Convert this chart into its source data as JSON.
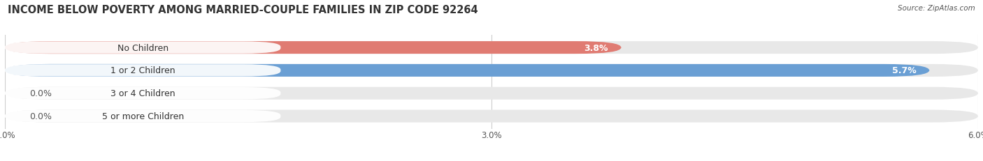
{
  "title": "INCOME BELOW POVERTY AMONG MARRIED-COUPLE FAMILIES IN ZIP CODE 92264",
  "source": "Source: ZipAtlas.com",
  "categories": [
    "No Children",
    "1 or 2 Children",
    "3 or 4 Children",
    "5 or more Children"
  ],
  "values": [
    3.8,
    5.7,
    0.0,
    0.0
  ],
  "bar_colors": [
    "#E07B72",
    "#6A9FD4",
    "#C9A0DC",
    "#70C8C8"
  ],
  "xlim": [
    0,
    6.0
  ],
  "xtick_vals": [
    0.0,
    3.0,
    6.0
  ],
  "xtick_labels": [
    "0.0%",
    "3.0%",
    "6.0%"
  ],
  "background_color": "#FFFFFF",
  "bar_bg_color": "#E8E8E8",
  "title_fontsize": 10.5,
  "label_fontsize": 9,
  "value_fontsize": 9,
  "bar_height": 0.55,
  "bar_gap": 0.45,
  "rounding_size": 0.28
}
